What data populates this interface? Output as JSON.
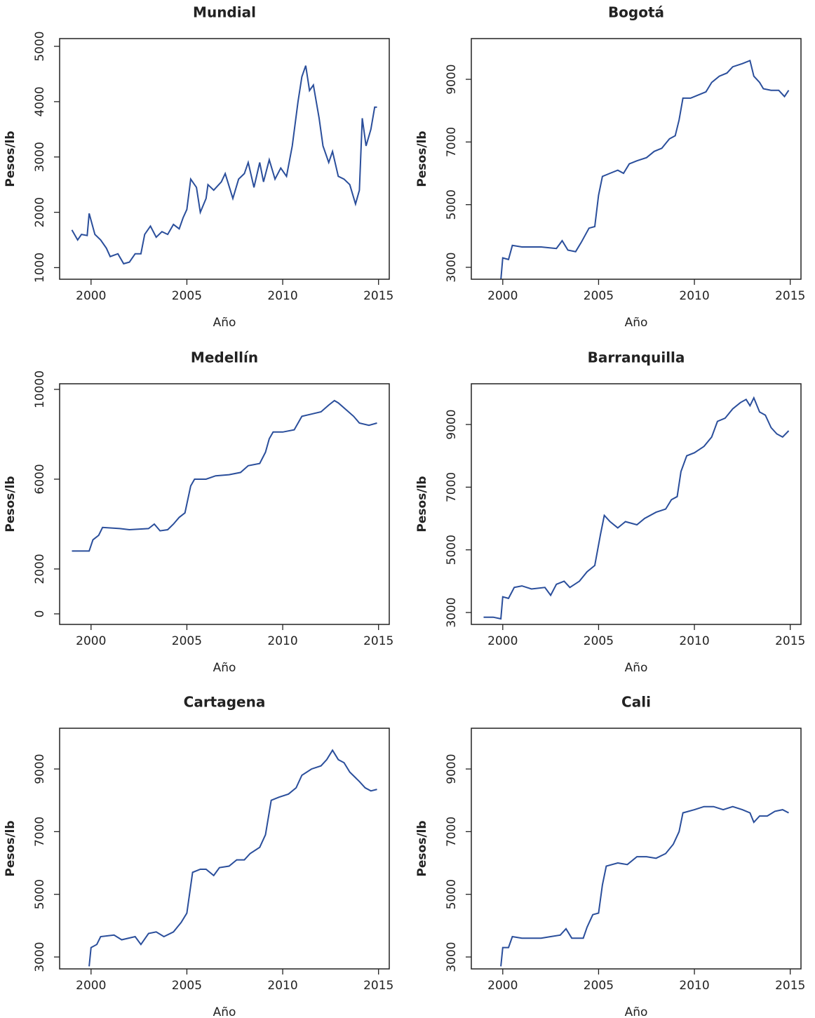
{
  "chart_data": [
    {
      "type": "line",
      "title": "Mundial",
      "xlabel": "Año",
      "ylabel": "Pesos/lb",
      "color": "#2a4e9b",
      "xlim": [
        1998.36,
        2015.56
      ],
      "ylim": [
        790,
        5140
      ],
      "xticks": [
        2000,
        2005,
        2010,
        2015
      ],
      "yticks": [
        1000,
        2000,
        3000,
        4000,
        5000
      ],
      "x": [
        1999.0,
        1999.3,
        1999.5,
        1999.8,
        1999.9,
        2000.2,
        2000.5,
        2000.8,
        2001.0,
        2001.4,
        2001.7,
        2002.0,
        2002.3,
        2002.6,
        2002.8,
        2003.1,
        2003.4,
        2003.7,
        2004.0,
        2004.3,
        2004.6,
        2004.8,
        2005.0,
        2005.2,
        2005.5,
        2005.7,
        2006.0,
        2006.1,
        2006.4,
        2006.8,
        2007.0,
        2007.4,
        2007.7,
        2008.0,
        2008.2,
        2008.5,
        2008.8,
        2009.0,
        2009.3,
        2009.6,
        2009.9,
        2010.2,
        2010.5,
        2010.8,
        2011.0,
        2011.2,
        2011.4,
        2011.6,
        2011.9,
        2012.1,
        2012.4,
        2012.6,
        2012.9,
        2013.2,
        2013.5,
        2013.8,
        2014.0,
        2014.15,
        2014.35,
        2014.6,
        2014.8,
        2014.92
      ],
      "values": [
        1680,
        1500,
        1600,
        1580,
        1980,
        1600,
        1500,
        1350,
        1200,
        1250,
        1070,
        1100,
        1250,
        1250,
        1600,
        1750,
        1550,
        1650,
        1600,
        1780,
        1700,
        1900,
        2050,
        2600,
        2450,
        2000,
        2250,
        2500,
        2400,
        2550,
        2700,
        2250,
        2600,
        2700,
        2900,
        2450,
        2900,
        2550,
        2950,
        2600,
        2800,
        2650,
        3200,
        4000,
        4450,
        4650,
        4200,
        4300,
        3700,
        3200,
        2900,
        3100,
        2650,
        2600,
        2500,
        2150,
        2400,
        3700,
        3200,
        3500,
        3900,
        3900
      ]
    },
    {
      "type": "line",
      "title": "Bogotá",
      "xlabel": "Año",
      "ylabel": "Pesos/lb",
      "color": "#2a4e9b",
      "xlim": [
        1998.36,
        2015.56
      ],
      "ylim": [
        2620,
        10300
      ],
      "xticks": [
        2000,
        2005,
        2010,
        2015
      ],
      "yticks": [
        3000,
        5000,
        7000,
        9000
      ],
      "x": [
        1999.9,
        2000.0,
        2000.3,
        2000.5,
        2001.0,
        2002.0,
        2002.8,
        2003.1,
        2003.4,
        2003.8,
        2004.1,
        2004.5,
        2004.8,
        2005.0,
        2005.2,
        2005.6,
        2006.0,
        2006.3,
        2006.6,
        2007.0,
        2007.5,
        2007.9,
        2008.3,
        2008.7,
        2009.0,
        2009.2,
        2009.4,
        2009.8,
        2010.2,
        2010.6,
        2010.9,
        2011.3,
        2011.7,
        2012.0,
        2012.5,
        2012.9,
        2013.1,
        2013.4,
        2013.6,
        2014.0,
        2014.4,
        2014.7,
        2014.92
      ],
      "values": [
        2600,
        3300,
        3250,
        3700,
        3650,
        3650,
        3600,
        3850,
        3550,
        3500,
        3800,
        4250,
        4300,
        5300,
        5900,
        6000,
        6100,
        6000,
        6300,
        6400,
        6500,
        6700,
        6800,
        7100,
        7200,
        7700,
        8400,
        8400,
        8500,
        8600,
        8900,
        9100,
        9200,
        9400,
        9500,
        9600,
        9100,
        8900,
        8700,
        8650,
        8650,
        8450,
        8650
      ]
    },
    {
      "type": "line",
      "title": "Medellín",
      "xlabel": "Año",
      "ylabel": "Pesos/lb",
      "color": "#2a4e9b",
      "xlim": [
        1998.36,
        2015.56
      ],
      "ylim": [
        -470,
        10250
      ],
      "xticks": [
        2000,
        2005,
        2010,
        2015
      ],
      "yticks": [
        0,
        2000,
        6000,
        10000
      ],
      "x": [
        1999.0,
        1999.9,
        2000.1,
        2000.4,
        2000.6,
        2001.5,
        2002.0,
        2003.0,
        2003.3,
        2003.6,
        2004.0,
        2004.3,
        2004.6,
        2004.9,
        2005.2,
        2005.4,
        2006.0,
        2006.5,
        2007.2,
        2007.8,
        2008.2,
        2008.8,
        2009.1,
        2009.3,
        2009.5,
        2010.0,
        2010.6,
        2011.0,
        2011.5,
        2012.0,
        2012.4,
        2012.7,
        2012.9,
        2013.3,
        2013.7,
        2014.0,
        2014.5,
        2014.92
      ],
      "values": [
        2800,
        2800,
        3300,
        3500,
        3850,
        3800,
        3750,
        3800,
        4000,
        3700,
        3750,
        4000,
        4300,
        4500,
        5700,
        6000,
        6000,
        6150,
        6200,
        6300,
        6600,
        6700,
        7200,
        7800,
        8100,
        8100,
        8200,
        8800,
        8900,
        9000,
        9300,
        9500,
        9400,
        9100,
        8800,
        8500,
        8400,
        8500
      ]
    },
    {
      "type": "line",
      "title": "Barranquilla",
      "xlabel": "Año",
      "ylabel": "Pesos/lb",
      "color": "#2a4e9b",
      "xlim": [
        1998.36,
        2015.56
      ],
      "ylim": [
        2620,
        10300
      ],
      "xticks": [
        2000,
        2005,
        2010,
        2015
      ],
      "yticks": [
        3000,
        5000,
        7000,
        9000
      ],
      "x": [
        1999.0,
        1999.5,
        1999.9,
        2000.0,
        2000.3,
        2000.6,
        2001.0,
        2001.5,
        2002.2,
        2002.5,
        2002.8,
        2003.2,
        2003.5,
        2004.0,
        2004.4,
        2004.8,
        2005.1,
        2005.3,
        2005.6,
        2006.0,
        2006.4,
        2007.0,
        2007.4,
        2008.0,
        2008.5,
        2008.8,
        2009.1,
        2009.3,
        2009.6,
        2010.0,
        2010.5,
        2010.9,
        2011.2,
        2011.6,
        2012.0,
        2012.4,
        2012.7,
        2012.9,
        2013.1,
        2013.4,
        2013.7,
        2014.0,
        2014.3,
        2014.6,
        2014.92
      ],
      "values": [
        2850,
        2850,
        2800,
        3500,
        3450,
        3800,
        3850,
        3750,
        3800,
        3550,
        3900,
        4000,
        3800,
        4000,
        4300,
        4500,
        5500,
        6100,
        5900,
        5700,
        5900,
        5800,
        6000,
        6200,
        6300,
        6600,
        6700,
        7500,
        8000,
        8100,
        8300,
        8600,
        9100,
        9200,
        9500,
        9700,
        9800,
        9600,
        9850,
        9400,
        9300,
        8900,
        8700,
        8600,
        8800
      ]
    },
    {
      "type": "line",
      "title": "Cartagena",
      "xlabel": "Año",
      "ylabel": "Pesos/lb",
      "color": "#2a4e9b",
      "xlim": [
        1998.36,
        2015.56
      ],
      "ylim": [
        2620,
        10300
      ],
      "xticks": [
        2000,
        2005,
        2010,
        2015
      ],
      "yticks": [
        3000,
        5000,
        7000,
        9000
      ],
      "x": [
        1999.9,
        2000.0,
        2000.3,
        2000.5,
        2001.2,
        2001.6,
        2002.3,
        2002.6,
        2003.0,
        2003.4,
        2003.8,
        2004.3,
        2004.7,
        2005.0,
        2005.3,
        2005.7,
        2006.0,
        2006.4,
        2006.7,
        2007.2,
        2007.6,
        2008.0,
        2008.3,
        2008.8,
        2009.1,
        2009.4,
        2009.8,
        2010.3,
        2010.7,
        2011.0,
        2011.5,
        2012.0,
        2012.3,
        2012.6,
        2012.9,
        2013.2,
        2013.5,
        2014.0,
        2014.3,
        2014.6,
        2014.92
      ],
      "values": [
        2700,
        3300,
        3400,
        3650,
        3700,
        3550,
        3650,
        3400,
        3750,
        3800,
        3650,
        3800,
        4100,
        4400,
        5700,
        5800,
        5800,
        5600,
        5850,
        5900,
        6100,
        6100,
        6300,
        6500,
        6900,
        8000,
        8100,
        8200,
        8400,
        8800,
        9000,
        9100,
        9300,
        9600,
        9300,
        9200,
        8900,
        8600,
        8400,
        8300,
        8350
      ]
    },
    {
      "type": "line",
      "title": "Cali",
      "xlabel": "Año",
      "ylabel": "Pesos/lb",
      "color": "#2a4e9b",
      "xlim": [
        1998.36,
        2015.56
      ],
      "ylim": [
        2620,
        10300
      ],
      "xticks": [
        2000,
        2005,
        2010,
        2015
      ],
      "yticks": [
        3000,
        5000,
        7000,
        9000
      ],
      "x": [
        1999.9,
        2000.0,
        2000.3,
        2000.5,
        2001.0,
        2002.0,
        2002.5,
        2003.0,
        2003.3,
        2003.6,
        2004.2,
        2004.4,
        2004.7,
        2005.0,
        2005.2,
        2005.4,
        2006.0,
        2006.5,
        2007.0,
        2007.5,
        2008.0,
        2008.5,
        2008.9,
        2009.2,
        2009.4,
        2010.0,
        2010.5,
        2011.0,
        2011.5,
        2012.0,
        2012.5,
        2012.9,
        2013.1,
        2013.4,
        2013.8,
        2014.2,
        2014.6,
        2014.92
      ],
      "values": [
        2700,
        3300,
        3300,
        3650,
        3600,
        3600,
        3650,
        3700,
        3900,
        3600,
        3600,
        3950,
        4350,
        4400,
        5300,
        5900,
        6000,
        5950,
        6200,
        6200,
        6150,
        6300,
        6600,
        7000,
        7600,
        7700,
        7800,
        7800,
        7700,
        7800,
        7700,
        7600,
        7300,
        7500,
        7500,
        7650,
        7700,
        7600
      ]
    }
  ]
}
